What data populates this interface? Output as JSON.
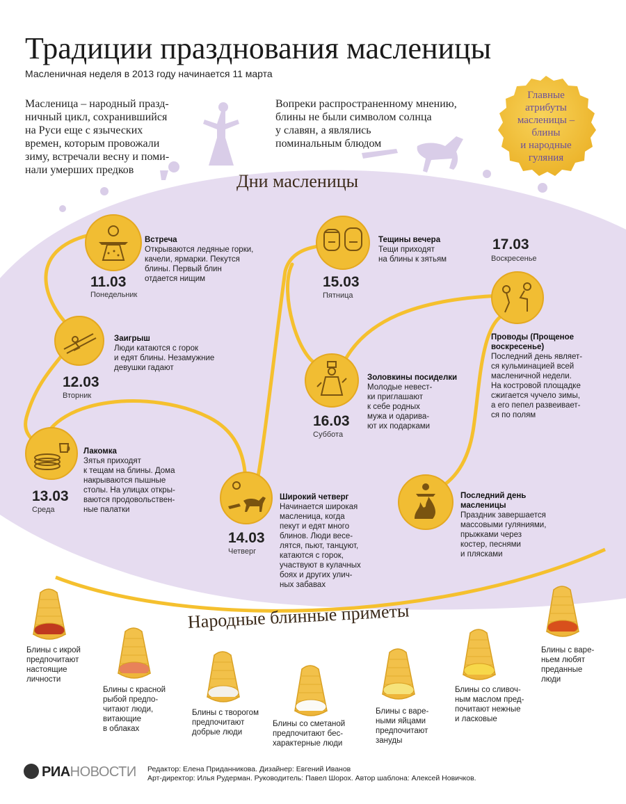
{
  "header": {
    "title": "Традиции празднования масленицы",
    "subtitle": "Масленичная неделя в 2013 году начинается 11 марта"
  },
  "intro": {
    "left": "Масленица – народный празд-\nничный цикл, сохранившийся\nна Руси еще с языческих\nвремен, которым провожали\nзиму, встречали весну и поми-\nнали умерших предков",
    "right": "Вопреки распространенному мнению,\nблины не были символом солнца\nу славян, а являлись\nпоминальным блюдом"
  },
  "badge": {
    "text": "Главные\nатрибуты\nмасленицы –\nблины\nи народные\nгуляния"
  },
  "days_section": {
    "title": "Дни масленицы",
    "days": [
      {
        "date": "11.03",
        "weekday": "Понедельник",
        "title": "Встреча",
        "text": "Открываются ледяные горки,\nкачели, ярмарки. Пекутся\nблины. Первый блин\nотдается нищим",
        "icon": "scarecrow-icon"
      },
      {
        "date": "12.03",
        "weekday": "Вторник",
        "title": "Заигрыш",
        "text": "Люди катаются с горок\nи едят блины. Незамужние\nдевушки гадают",
        "icon": "sled-icon"
      },
      {
        "date": "13.03",
        "weekday": "Среда",
        "title": "Лакомка",
        "text": "Зятья приходят\nк тещам на блины. Дома\nнакрываются пышные\nстолы. На улицах откры-\nваются продовольствен-\nные палатки",
        "icon": "pancake-stack-icon"
      },
      {
        "date": "14.03",
        "weekday": "Четверг",
        "title": "Широкий четверг",
        "text": "Начинается широкая\nмасленица, когда\nпекут и едят много\nблинов. Люди весе-\nлятся, пьют, танцуют,\nкатаются с горок,\nучаствуют в кулачных\nбоях и других улич-\nных забавах",
        "icon": "horse-sleigh-icon"
      },
      {
        "date": "15.03",
        "weekday": "Пятница",
        "title": "Тещины вечера",
        "text": "Тещи приходят\nна блины к зятьям",
        "icon": "two-faces-icon"
      },
      {
        "date": "16.03",
        "weekday": "Суббота",
        "title": "Золовкины\nпосиделки",
        "text": "Молодые невест-\nки приглашают\nк себе родных\nмужа и одарива-\nют их подарками",
        "icon": "dancing-woman-icon"
      },
      {
        "date": "17.03",
        "weekday": "Воскресенье",
        "title": "Проводы (Прощеное\nвоскресенье)",
        "text": "Последний день являет-\nся кульминацией всей\nмасленичной недели.\nНа костровой площадке\nсжигается чучело зимы,\nа его пепел развеивает-\nся по полям",
        "icon": "bowing-people-icon"
      },
      {
        "date": "",
        "weekday": "",
        "title": "Последний день\nмасленицы",
        "text": "Праздник завершается\nмассовыми гуляниями,\nпрыжками через\nкостер, песнями\nи плясками",
        "icon": "bonfire-icon"
      }
    ]
  },
  "omens_section": {
    "title": "Народные блинные приметы",
    "items": [
      {
        "text": "Блины с икрой\nпредпочитают\nнастоящие\nличности",
        "filling": "#c0391f"
      },
      {
        "text": "Блины с красной\nрыбой предпо-\nчитают люди,\nвитающие\nв облаках",
        "filling": "#e8825a"
      },
      {
        "text": "Блины с творогом\nпредпочитают\nдобрые люди",
        "filling": "#f4f1ea"
      },
      {
        "text": "Блины со сметаной\nпредпочитают бес-\nхарактерные люди",
        "filling": "#fbfaf6"
      },
      {
        "text": "Блины с варе-\nными яйцами\nпредпочитают\nзануды",
        "filling": "#f6e37a"
      },
      {
        "text": "Блины со сливоч-\nным маслом пред-\nпочитают нежные\nи ласковые",
        "filling": "#f7d84a"
      },
      {
        "text": "Блины с варе-\nньем любят\nпреданные\nлюди",
        "filling": "#d8501c"
      }
    ]
  },
  "footer": {
    "logo_bold": "РИА",
    "logo_light": "НОВОСТИ",
    "credits": "Редактор: Елена Приданникова. Дизайнер: Евгений Иванов\nАрт-директор: Илья Рудерман. Руководитель: Павел Шорох. Автор шаблона: Алексей Новичков."
  },
  "colors": {
    "lavender": "#e6dcf0",
    "gold": "#f6c33a",
    "gold_dark": "#e0a21c",
    "path": "#f5c02e",
    "silhouette": "#d9cde8"
  }
}
